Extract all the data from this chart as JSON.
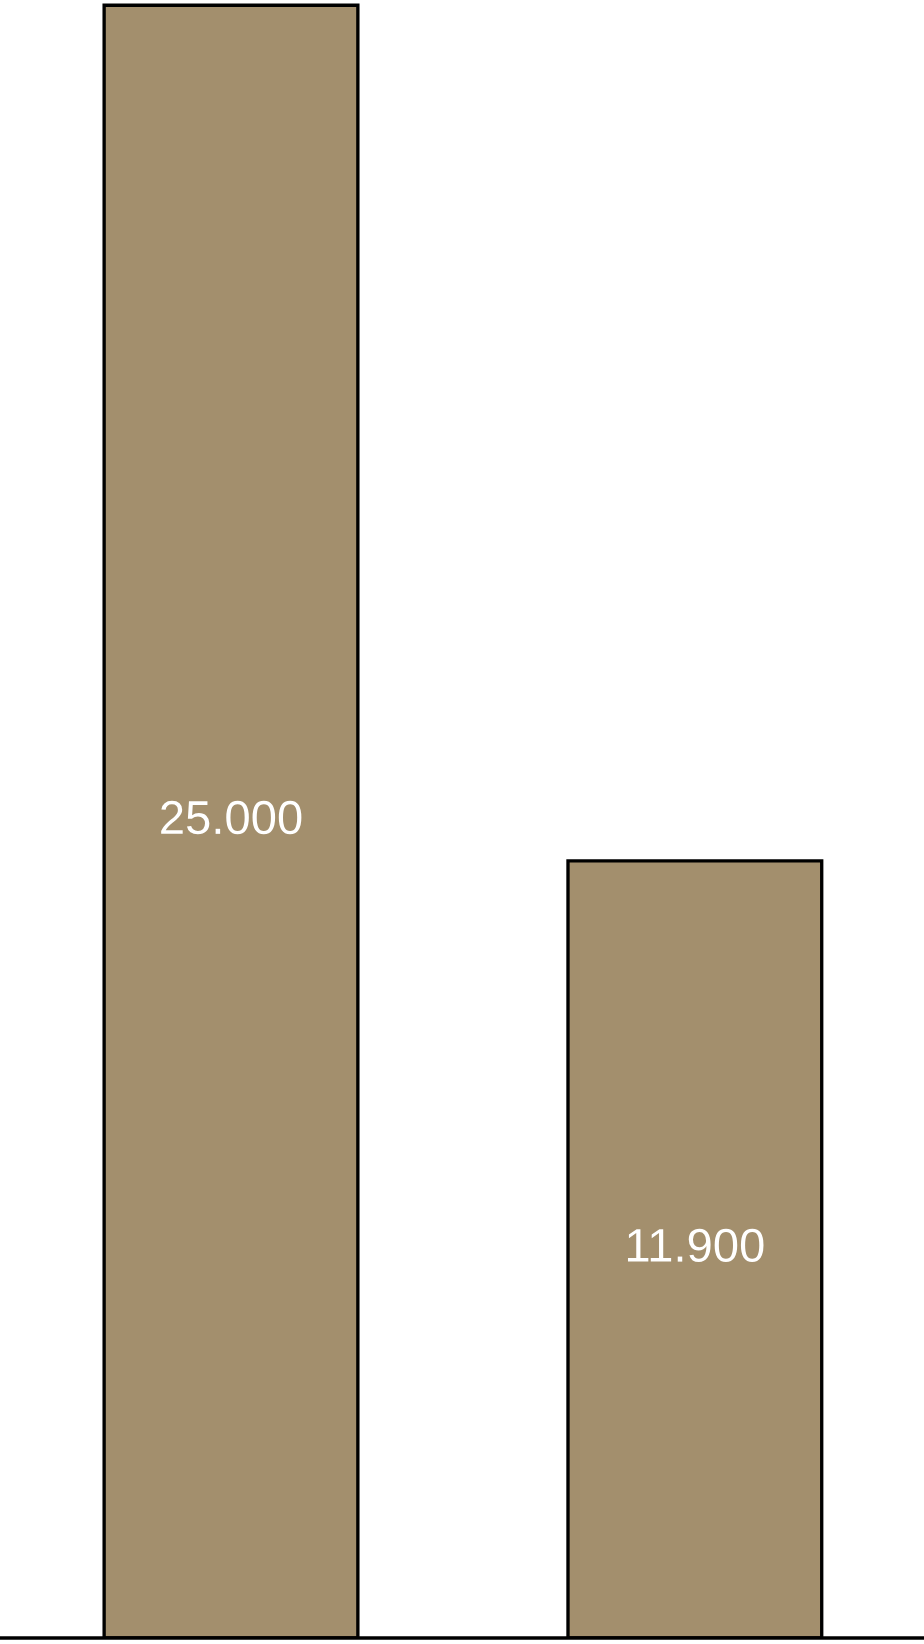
{
  "chart_data": {
    "type": "bar",
    "categories": [
      null,
      null
    ],
    "values": [
      25000,
      11900
    ],
    "value_labels": [
      "25.000",
      "11.900"
    ],
    "color": "#a38f6d",
    "grid": false,
    "legend": false
  }
}
